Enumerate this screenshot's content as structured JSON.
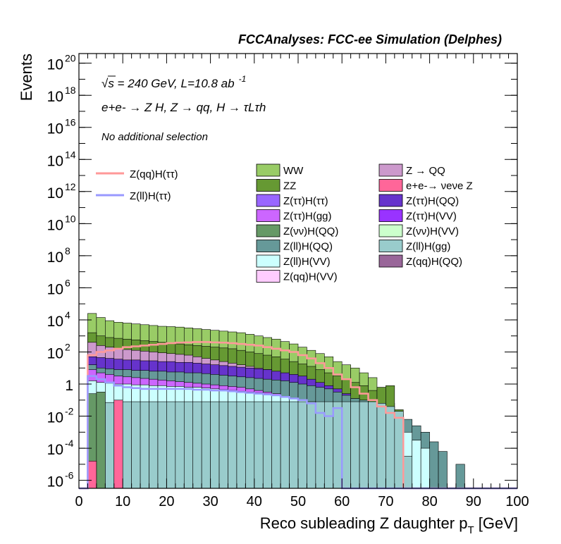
{
  "chart_data": {
    "type": "stacked-histogram",
    "title": "FCCAnalyses: FCC-ee Simulation (Delphes)",
    "xlabel": "Reco subleading Z daughter p",
    "xlabel_sub": "T",
    "xlabel_unit": " [GeV]",
    "ylabel": "Events",
    "xlim": [
      0,
      100
    ],
    "ylog": true,
    "ylim_exp": [
      -6.5,
      20.6
    ],
    "x_ticks": [
      "0",
      "10",
      "20",
      "30",
      "40",
      "50",
      "60",
      "70",
      "80",
      "90",
      "100"
    ],
    "y_ticks": [
      {
        "exp": -6,
        "label": "10",
        "sup": "-6"
      },
      {
        "exp": -4,
        "label": "10",
        "sup": "-4"
      },
      {
        "exp": -2,
        "label": "10",
        "sup": "-2"
      },
      {
        "exp": 0,
        "label": "1",
        "sup": ""
      },
      {
        "exp": 2,
        "label": "10",
        "sup": "2"
      },
      {
        "exp": 4,
        "label": "10",
        "sup": "4"
      },
      {
        "exp": 6,
        "label": "10",
        "sup": "6"
      },
      {
        "exp": 8,
        "label": "10",
        "sup": "8"
      },
      {
        "exp": 10,
        "label": "10",
        "sup": "10"
      },
      {
        "exp": 12,
        "label": "10",
        "sup": "12"
      },
      {
        "exp": 14,
        "label": "10",
        "sup": "14"
      },
      {
        "exp": 16,
        "label": "10",
        "sup": "16"
      },
      {
        "exp": 18,
        "label": "10",
        "sup": "18"
      },
      {
        "exp": 20,
        "label": "10",
        "sup": "20"
      }
    ],
    "annotations": {
      "energy": "√s = 240 GeV, L=10.8 ab",
      "energy_sup": "-1",
      "process": "e+e- → Z H, Z → qq, H → τLτh",
      "selection": "No additional selection"
    },
    "legend_signal": [
      {
        "name": "Z(qq)H(ττ)",
        "color": "#ff9999"
      },
      {
        "name": "Z(ll)H(ττ)",
        "color": "#9999ff"
      }
    ],
    "legend_background": [
      {
        "name": "WW",
        "color": "#99cc66"
      },
      {
        "name": "Z → QQ",
        "color": "#cc99cc"
      },
      {
        "name": "ZZ",
        "color": "#669933"
      },
      {
        "name": "e+e-→ νeνe Z",
        "color": "#ff6699"
      },
      {
        "name": "Z(ττ)H(ττ)",
        "color": "#9966ff"
      },
      {
        "name": "Z(ττ)H(QQ)",
        "color": "#6633cc"
      },
      {
        "name": "Z(ττ)H(gg)",
        "color": "#cc66ff"
      },
      {
        "name": "Z(ττ)H(VV)",
        "color": "#9933ff"
      },
      {
        "name": "Z(νν)H(QQ)",
        "color": "#669966"
      },
      {
        "name": "Z(νν)H(VV)",
        "color": "#ccffcc"
      },
      {
        "name": "Z(ll)H(QQ)",
        "color": "#669999"
      },
      {
        "name": "Z(ll)H(gg)",
        "color": "#99cccc"
      },
      {
        "name": "Z(ll)H(VV)",
        "color": "#ccffff"
      },
      {
        "name": "Z(qq)H(QQ)",
        "color": "#996699"
      },
      {
        "name": "Z(qq)H(VV)",
        "color": "#ffccff"
      }
    ],
    "bin_edges_note": "50 bins of 2 GeV from 0 to 100; values are log10(events)",
    "layers": [
      {
        "name": "WW",
        "color": "#99cc66",
        "log10": [
          -7,
          4.4,
          4.15,
          3.95,
          3.85,
          3.8,
          3.75,
          3.7,
          3.65,
          3.6,
          3.58,
          3.55,
          3.5,
          3.45,
          3.4,
          3.35,
          3.3,
          3.25,
          3.2,
          3.1,
          3.0,
          2.9,
          2.8,
          2.65,
          2.5,
          2.3,
          2.1,
          1.9,
          1.7,
          1.4,
          1.2,
          1.0,
          0.7,
          0.4,
          -0.5,
          -1.2,
          -7,
          -7,
          -7,
          -7,
          -7,
          -7,
          -7,
          -7,
          -7,
          -7,
          -7,
          -7,
          -7,
          -7
        ]
      },
      {
        "name": "ZZ",
        "color": "#669933",
        "log10": [
          -7,
          3.2,
          3.0,
          2.9,
          2.85,
          2.8,
          2.75,
          2.7,
          2.65,
          2.6,
          2.55,
          2.5,
          2.45,
          2.4,
          2.35,
          2.3,
          2.25,
          2.2,
          2.1,
          2.0,
          1.9,
          1.8,
          1.7,
          1.55,
          1.4,
          1.25,
          1.1,
          0.9,
          0.7,
          0.5,
          0.3,
          0.1,
          -0.1,
          -0.4,
          -0.2,
          -0.1,
          -1.6,
          -7,
          -7,
          -7,
          -7,
          -7,
          -7,
          -7,
          -7,
          -7,
          -7,
          -7,
          -7,
          -7
        ]
      },
      {
        "name": "Z → QQ",
        "color": "#cc99cc",
        "log10": [
          -7,
          2.6,
          2.4,
          2.3,
          2.2,
          2.15,
          2.1,
          2.05,
          2.0,
          1.95,
          1.9,
          1.85,
          1.8,
          1.7,
          1.6,
          1.5,
          1.4,
          1.3,
          1.2,
          1.1,
          1.0,
          0.9,
          0.8,
          0.6,
          0.4,
          0.2,
          0.0,
          -0.2,
          -0.4,
          -7,
          -7,
          -7,
          -7,
          -7,
          -7,
          -7,
          -7,
          -7,
          -7,
          -7,
          -7,
          -7,
          -7,
          -7,
          -7,
          -7,
          -7,
          -7,
          -7,
          -7
        ]
      },
      {
        "name": "Z(ττ)H(QQ)",
        "color": "#6633cc",
        "log10": [
          -7,
          1.7,
          1.65,
          1.6,
          1.55,
          1.5,
          1.5,
          1.45,
          1.45,
          1.4,
          1.4,
          1.35,
          1.35,
          1.3,
          1.25,
          1.2,
          1.15,
          1.1,
          1.05,
          1.0,
          0.95,
          0.9,
          0.8,
          0.7,
          0.6,
          0.5,
          0.3,
          0.1,
          -0.1,
          -0.3,
          -0.6,
          -0.9,
          -1.2,
          -1.6,
          -1.8,
          -2.2,
          -7,
          -7,
          -7,
          -7,
          -7,
          -7,
          -7,
          -7,
          -7,
          -7,
          -7,
          -7,
          -7,
          -7
        ]
      },
      {
        "name": "Z(ll)H(QQ)",
        "color": "#669999",
        "log10": [
          -7,
          1.2,
          1.0,
          0.95,
          0.9,
          0.9,
          0.85,
          0.85,
          0.8,
          0.8,
          0.75,
          0.75,
          0.7,
          0.7,
          0.65,
          0.6,
          0.55,
          0.5,
          0.45,
          0.4,
          0.35,
          0.3,
          0.25,
          0.2,
          0.1,
          0.0,
          -0.1,
          -0.2,
          -0.3,
          -0.5,
          -0.7,
          -0.9,
          -1.0,
          -1.2,
          -1.4,
          -1.6,
          -1.9,
          -2.2,
          -2.6,
          -3.0,
          -3.6,
          -4.2,
          -6.5,
          -5.0,
          -7,
          -7,
          -7,
          -7,
          -7,
          -7
        ]
      },
      {
        "name": "Z(ττ)H(gg)",
        "color": "#cc66ff",
        "log10": [
          -7,
          0.9,
          0.7,
          0.6,
          0.5,
          0.45,
          0.4,
          0.35,
          0.3,
          0.25,
          0.2,
          0.15,
          0.1,
          0.05,
          0.0,
          -0.05,
          -0.1,
          -0.15,
          -0.2,
          -0.3,
          -0.4,
          -0.5,
          -0.6,
          -0.8,
          -1.0,
          -1.2,
          -7,
          -7,
          -7,
          -7,
          -7,
          -7,
          -7,
          -7,
          -7,
          -7,
          -7,
          -7,
          -7,
          -7,
          -7,
          -7,
          -7,
          -7,
          -7,
          -7,
          -7,
          -7,
          -7,
          -7
        ]
      },
      {
        "name": "Z(ll)H(VV)",
        "color": "#ccffff",
        "log10": [
          -7,
          0.2,
          0.1,
          0.05,
          0.0,
          0.0,
          -0.05,
          -0.05,
          -0.1,
          -0.1,
          -0.15,
          -0.15,
          -0.2,
          -0.2,
          -0.25,
          -0.3,
          -0.35,
          -0.4,
          -0.45,
          -0.5,
          -0.55,
          -0.6,
          -0.7,
          -0.8,
          -0.9,
          -1.0,
          -1.1,
          -1.2,
          -1.3,
          -1.4,
          -1.5,
          -1.6,
          -1.7,
          -1.8,
          -1.9,
          -2.0,
          -2.2,
          -3.0,
          -3.5,
          -4.0,
          -7,
          -7,
          -7,
          -7,
          -7,
          -7,
          -7,
          -7,
          -7,
          -7
        ]
      },
      {
        "name": "Z(ll)H(gg)",
        "color": "#99cccc",
        "log10": [
          -7,
          -1.4,
          -1.2,
          -1.15,
          -1.1,
          -1.1,
          -1.1,
          -1.1,
          -1.1,
          -1.1,
          -1.1,
          -1.1,
          -1.1,
          -1.1,
          -1.1,
          -1.1,
          -1.1,
          -1.1,
          -1.1,
          -1.1,
          -1.1,
          -1.1,
          -1.1,
          -1.1,
          -1.1,
          -1.1,
          -1.1,
          -1.1,
          -1.1,
          -1.1,
          -1.1,
          -1.1,
          -1.1,
          -1.1,
          -1.2,
          -1.4,
          -1.7,
          -4.5,
          -7,
          -7,
          -7,
          -7,
          -7,
          -7,
          -7,
          -7,
          -7,
          -7,
          -7,
          -7
        ]
      },
      {
        "name": "Z(νν)H(QQ)",
        "color": "#669966",
        "log10": [
          -7,
          -0.6,
          -0.5,
          -7,
          -7,
          -7,
          -7,
          -7,
          -7,
          -7,
          -7,
          -7,
          -7,
          -7,
          -7,
          -7,
          -7,
          -7,
          -7,
          -7,
          -7,
          -7,
          -7,
          -7,
          -7,
          -7,
          -7,
          -7,
          -7,
          -7,
          -7,
          -7,
          -7,
          -7,
          -7,
          -7,
          -7,
          -7,
          -7,
          -7,
          -7,
          -7,
          -7,
          -7,
          -7,
          -7,
          -7,
          -7,
          -7,
          -7
        ]
      },
      {
        "name": "e+e-→ νeνe Z",
        "color": "#ff6699",
        "log10": [
          -7,
          -4.8,
          -7,
          -7,
          -1.0,
          -7,
          -7,
          -7,
          -7,
          -7,
          -7,
          -7,
          -7,
          -7,
          -7,
          -7,
          -7,
          -7,
          -7,
          -7,
          -7,
          -7,
          -7,
          -7,
          -7,
          -7,
          -7,
          -7,
          -7,
          -7,
          -7,
          -7,
          -7,
          -7,
          -7,
          -7,
          -7,
          -7,
          -7,
          -7,
          -7,
          -7,
          -7,
          -7,
          -7,
          -7,
          -7,
          -7,
          -7,
          -7
        ]
      },
      {
        "name": "Z(qq)H(QQ)",
        "color": "#996699",
        "log10": [
          -7,
          -7,
          -7,
          -7,
          -7,
          -7,
          -7,
          -7,
          -7,
          -7,
          -7,
          -7,
          -7,
          -7,
          -7,
          -7,
          -7,
          -7,
          -7,
          -7,
          -7,
          -7,
          -7,
          -7,
          -7,
          -7,
          -7,
          -7,
          -7,
          -7,
          -7,
          -7,
          -7,
          -7,
          -7,
          -7,
          -7,
          -7,
          -7,
          -7,
          -7,
          -7,
          -7,
          -7,
          -7,
          -7,
          -7,
          -7,
          -7,
          -7
        ]
      }
    ],
    "signal_lines": [
      {
        "name": "Z(qq)H(ττ)",
        "color": "#ff9999",
        "log10": [
          -7,
          1.8,
          2.0,
          2.1,
          2.2,
          2.3,
          2.35,
          2.4,
          2.45,
          2.5,
          2.55,
          2.58,
          2.6,
          2.62,
          2.62,
          2.6,
          2.58,
          2.55,
          2.5,
          2.45,
          2.4,
          2.3,
          2.2,
          2.1,
          2.0,
          1.8,
          1.6,
          1.3,
          1.0,
          0.6,
          0.3,
          -0.2,
          -0.6,
          -1.0,
          -1.4,
          -1.8,
          -2.1,
          -6.7,
          -7,
          -7,
          -7,
          -7,
          -7,
          -7,
          -7,
          -7,
          -7,
          -7,
          -7,
          -7
        ]
      },
      {
        "name": "Z(ll)H(ττ)",
        "color": "#9999ff",
        "log10": [
          -7,
          0.5,
          0.3,
          0.1,
          -0.1,
          -0.2,
          -0.25,
          -0.3,
          -0.3,
          -0.3,
          -0.3,
          -0.3,
          -0.3,
          -0.35,
          -0.35,
          -0.4,
          -0.4,
          -0.45,
          -0.5,
          -0.55,
          -0.6,
          -0.65,
          -0.7,
          -0.8,
          -0.9,
          -1.0,
          -1.2,
          -1.8,
          -2.0,
          -1.5,
          -7,
          -7,
          -7,
          -7,
          -7,
          -7,
          -7,
          -7,
          -7,
          -7,
          -7,
          -7,
          -7,
          -7,
          -7,
          -7,
          -7,
          -7,
          -7,
          -7
        ]
      }
    ]
  }
}
